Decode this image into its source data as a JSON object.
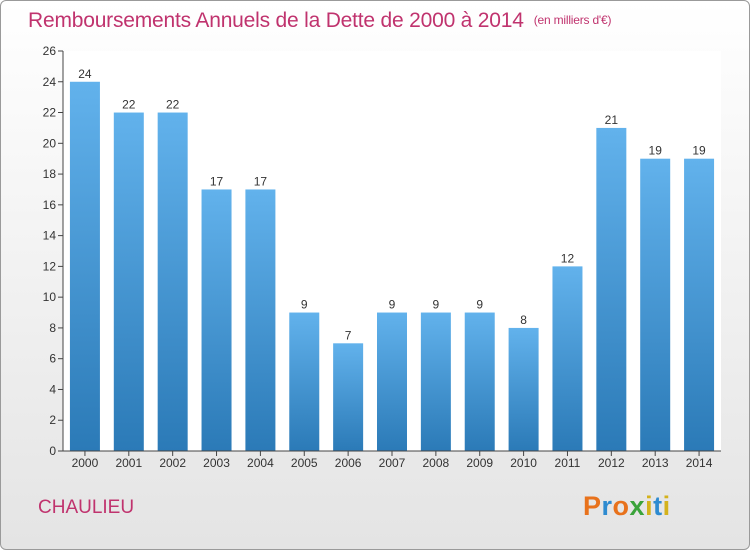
{
  "title": "Remboursements Annuels de la Dette de 2000 à 2014",
  "subtitle": "(en milliers d'€)",
  "town": "CHAULIEU",
  "logo": {
    "letters": [
      "P",
      "r",
      "o",
      "x",
      "i",
      "t",
      "i"
    ],
    "colors": [
      "#e8721c",
      "#2e8bd0",
      "#e8721c",
      "#3aa33a",
      "#d4b21c",
      "#2e8bd0",
      "#d4b21c"
    ]
  },
  "colors": {
    "title": "#c0336e",
    "bar_top": "#62b2ec",
    "bar_bottom": "#2b7ab7"
  },
  "chart_data": {
    "type": "bar",
    "title": "Remboursements Annuels de la Dette de 2000 à 2014",
    "xlabel": "",
    "ylabel": "",
    "categories": [
      "2000",
      "2001",
      "2002",
      "2003",
      "2004",
      "2005",
      "2006",
      "2007",
      "2008",
      "2009",
      "2010",
      "2011",
      "2012",
      "2013",
      "2014"
    ],
    "values": [
      24,
      22,
      22,
      17,
      17,
      9,
      7,
      9,
      9,
      9,
      8,
      12,
      21,
      19,
      19
    ],
    "ylim": [
      0,
      26
    ],
    "yticks": [
      0,
      2,
      4,
      6,
      8,
      10,
      12,
      14,
      16,
      18,
      20,
      22,
      24,
      26
    ],
    "grid": false,
    "legend": "none"
  }
}
